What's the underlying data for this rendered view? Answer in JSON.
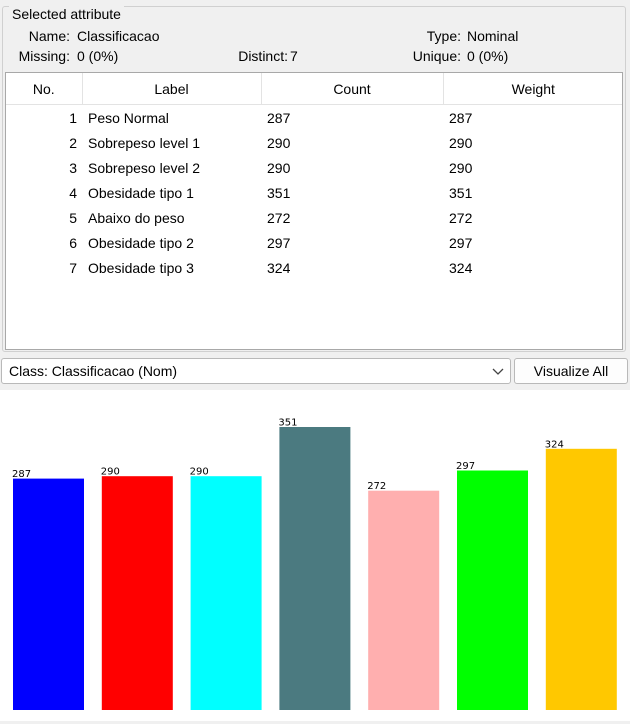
{
  "attribute": {
    "section_title": "Selected attribute",
    "name_label": "Name:",
    "name_value": "Classificacao",
    "type_label": "Type:",
    "type_value": "Nominal",
    "missing_label": "Missing:",
    "missing_value": "0 (0%)",
    "distinct_label": "Distinct:",
    "distinct_value": "7",
    "unique_label": "Unique:",
    "unique_value": "0 (0%)"
  },
  "table": {
    "headers": [
      "No.",
      "Label",
      "Count",
      "Weight"
    ],
    "rows": [
      {
        "no": "1",
        "label": "Peso Normal",
        "count": "287",
        "weight": "287"
      },
      {
        "no": "2",
        "label": "Sobrepeso level 1",
        "count": "290",
        "weight": "290"
      },
      {
        "no": "3",
        "label": "Sobrepeso level 2",
        "count": "290",
        "weight": "290"
      },
      {
        "no": "4",
        "label": "Obesidade tipo 1",
        "count": "351",
        "weight": "351"
      },
      {
        "no": "5",
        "label": "Abaixo do peso",
        "count": "272",
        "weight": "272"
      },
      {
        "no": "6",
        "label": "Obesidade tipo 2",
        "count": "297",
        "weight": "297"
      },
      {
        "no": "7",
        "label": "Obesidade tipo 3",
        "count": "324",
        "weight": "324"
      }
    ]
  },
  "class_select": {
    "value": "Class: Classificacao (Nom)",
    "icon": "chevron-down-icon"
  },
  "visualize_button": {
    "label": "Visualize All"
  },
  "chart_data": {
    "type": "bar",
    "categories": [
      "Peso Normal",
      "Sobrepeso level 1",
      "Sobrepeso level 2",
      "Obesidade tipo 1",
      "Abaixo do peso",
      "Obesidade tipo 2",
      "Obesidade tipo 3"
    ],
    "values": [
      287,
      290,
      290,
      351,
      272,
      297,
      324
    ],
    "value_labels": [
      "287",
      "290",
      "290",
      "351",
      "272",
      "297",
      "324"
    ],
    "colors": [
      "#0000ff",
      "#ff0000",
      "#00ffff",
      "#4b7a80",
      "#ffafaf",
      "#00ff00",
      "#ffc800"
    ],
    "ylim": [
      0,
      351
    ],
    "grid": false,
    "title": "",
    "xlabel": "",
    "ylabel": ""
  }
}
